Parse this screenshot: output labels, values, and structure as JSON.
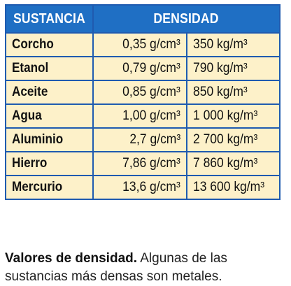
{
  "table": {
    "headers": {
      "substance": "SUSTANCIA",
      "density": "DENSIDAD"
    },
    "rows": [
      {
        "name": "Corcho",
        "gcm": "0,35 g/cm³",
        "kgm": "350 kg/m³"
      },
      {
        "name": "Etanol",
        "gcm": "0,79 g/cm³",
        "kgm": "790 kg/m³"
      },
      {
        "name": "Aceite",
        "gcm": "0,85 g/cm³",
        "kgm": "850 kg/m³"
      },
      {
        "name": "Agua",
        "gcm": "1,00 g/cm³",
        "kgm": "1 000 kg/m³"
      },
      {
        "name": "Aluminio",
        "gcm": "2,7 g/cm³",
        "kgm": "2 700 kg/m³"
      },
      {
        "name": "Hierro",
        "gcm": "7,86 g/cm³",
        "kgm": "7 860 kg/m³"
      },
      {
        "name": "Mercurio",
        "gcm": "13,6 g/cm³",
        "kgm": "13 600 kg/m³"
      }
    ]
  },
  "caption": {
    "lead": "Valores de densidad.",
    "text": " Algunas de las sustancias más densas son metales."
  },
  "colors": {
    "header_bg": "#1f6fc4",
    "border": "#1f5bb0",
    "cell_bg": "#fdf1c9"
  }
}
